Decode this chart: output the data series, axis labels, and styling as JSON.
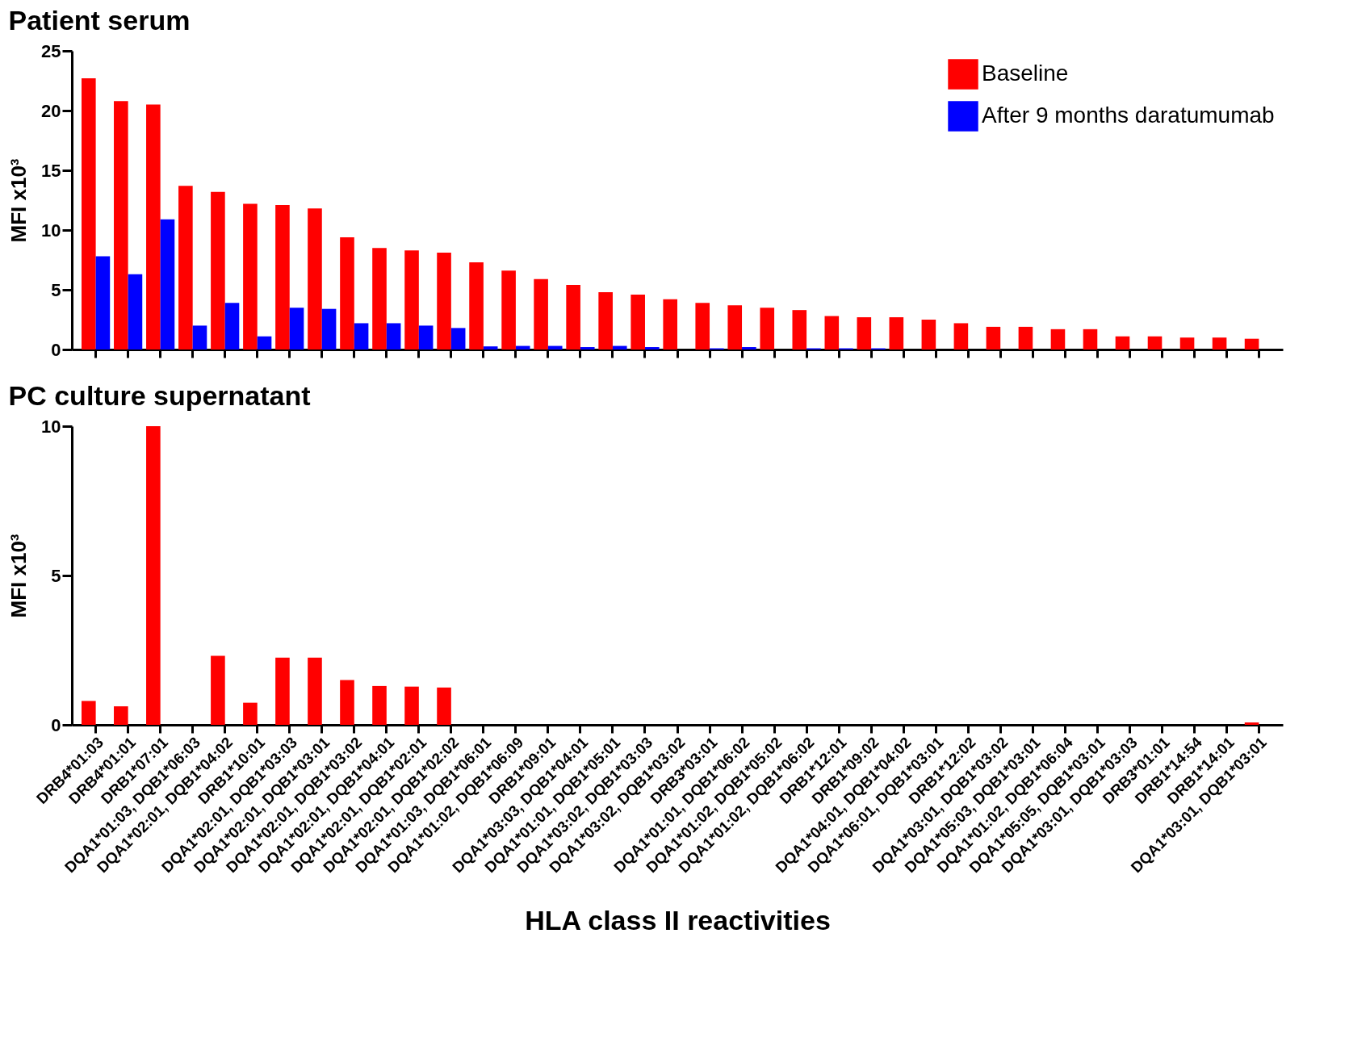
{
  "chart_data": [
    {
      "type": "bar",
      "title": "Patient serum",
      "ylabel": "MFI x10³",
      "legend": "top right",
      "grid": false,
      "tick_labels": "y",
      "categories": [
        null,
        null,
        null,
        null,
        null,
        null,
        null,
        null,
        null,
        null,
        null,
        null,
        null,
        null,
        null,
        null,
        null,
        null,
        null,
        null,
        null,
        null,
        null,
        null,
        null,
        null,
        null,
        null,
        null,
        null,
        null,
        null,
        null,
        null,
        null,
        null,
        null
      ],
      "ylim": [
        0,
        25
      ],
      "yticks": [
        0,
        5,
        10,
        15,
        20,
        25
      ],
      "series": [
        {
          "name": "Baseline",
          "color": "#ff0000",
          "values": [
            22.7,
            20.8,
            20.5,
            13.7,
            13.2,
            12.2,
            12.1,
            11.8,
            9.4,
            8.5,
            8.3,
            8.1,
            7.3,
            6.6,
            5.9,
            5.4,
            4.8,
            4.6,
            4.2,
            3.9,
            3.7,
            3.5,
            3.3,
            2.8,
            2.7,
            2.7,
            2.5,
            2.2,
            1.9,
            1.9,
            1.7,
            1.7,
            1.1,
            1.1,
            1.0,
            1.0,
            0.9
          ]
        },
        {
          "name": "After 9 months daratumumab",
          "color": "#0000ff",
          "values": [
            7.8,
            6.3,
            10.9,
            2.0,
            3.9,
            1.1,
            3.5,
            3.4,
            2.2,
            2.2,
            2.0,
            1.8,
            0.26,
            0.3,
            0.3,
            0.2,
            0.3,
            0.2,
            null,
            0.1,
            0.2,
            null,
            0.1,
            0.1,
            0.1,
            null,
            null,
            null,
            null,
            null,
            null,
            null,
            null,
            null,
            null,
            null,
            null
          ]
        }
      ]
    },
    {
      "type": "bar",
      "title": "PC culture supernatant",
      "ylabel": "MFI x10³",
      "xlabel": "HLA class II reactivities",
      "legend": "top right",
      "grid": false,
      "categories": [
        "DRB4*01:03",
        "DRB4*01:01",
        "DRB1*07:01",
        "DQA1*01:03, DQB1*06:03",
        "DQA1*02:01, DQB1*04:02",
        "DRB1*10:01",
        "DQA1*02:01, DQB1*03:03",
        "DQA1*02:01, DQB1*03:01",
        "DQA1*02:01, DQB1*03:02",
        "DQA1*02:01, DQB1*04:01",
        "DQA1*02:01, DQB1*02:01",
        "DQA1*02:01, DQB1*02:02",
        "DQA1*01:03, DQB1*06:01",
        "DQA1*01:02, DQB1*06:09",
        "DRB1*09:01",
        "DQA1*03:03, DQB1*04:01",
        "DQA1*01:01, DQB1*05:01",
        "DQA1*03:02, DQB1*03:03",
        "DQA1*03:02, DQB1*03:02",
        "DRB3*03:01",
        "DQA1*01:01, DQB1*06:02",
        "DQA1*01:02, DQB1*05:02",
        "DQA1*01:02, DQB1*06:02",
        "DRB1*12:01",
        "DRB1*09:02",
        "DQA1*04:01, DQB1*04:02",
        "DQA1*06:01, DQB1*03:01",
        "DRB1*12:02",
        "DQA1*03:01, DQB1*03:02",
        "DQA1*05:03, DQB1*03:01",
        "DQA1*01:02, DQB1*06:04",
        "DQA1*05:05, DQB1*03:01",
        "DQA1*03:01, DQB1*03:03",
        "DRB3*01:01",
        "DRB1*14:54",
        "DRB1*14:01",
        "DQA1*03:01, DQB1*03:01"
      ],
      "ylim": [
        0,
        10
      ],
      "yticks": [
        0,
        5,
        10
      ],
      "series": [
        {
          "name": "Baseline",
          "color": "#ff0000",
          "values": [
            0.8,
            0.62,
            10.0,
            null,
            2.31,
            0.74,
            2.25,
            2.25,
            1.5,
            1.3,
            1.28,
            1.25,
            null,
            null,
            null,
            null,
            null,
            null,
            null,
            null,
            null,
            null,
            null,
            null,
            null,
            null,
            null,
            null,
            null,
            null,
            null,
            null,
            null,
            null,
            null,
            null,
            0.08
          ]
        },
        {
          "name": "After 9 months daratumumab",
          "color": "#0000ff",
          "values": [
            null,
            null,
            null,
            null,
            null,
            null,
            null,
            null,
            null,
            null,
            null,
            null,
            null,
            null,
            null,
            null,
            null,
            null,
            null,
            null,
            null,
            null,
            null,
            null,
            null,
            null,
            null,
            null,
            null,
            null,
            null,
            null,
            null,
            null,
            null,
            null,
            null
          ]
        }
      ]
    }
  ]
}
